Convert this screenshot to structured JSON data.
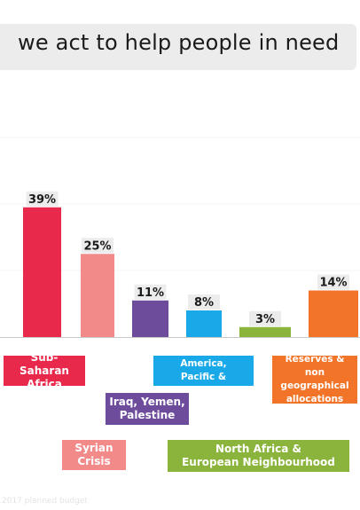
{
  "title": "we act to help people in need",
  "footnote": "2017 planned budget",
  "chart_data": {
    "type": "bar",
    "categories": [
      "Sub-Saharan Africa",
      "Syrian Crisis",
      "Iraq, Yemen, Palestine",
      "Asia, Latin America, Pacific & Caribbean",
      "North Africa & European Neighbourhood",
      "Reserves & non geographical allocations"
    ],
    "values": [
      39,
      25,
      11,
      8,
      3,
      14
    ],
    "value_labels": [
      "39%",
      "25%",
      "11%",
      "8%",
      "3%",
      "14%"
    ],
    "colors": [
      "#e8294c",
      "#f28a8a",
      "#6e4c9c",
      "#1aa9e8",
      "#8ab43c",
      "#f17428"
    ],
    "ylim": [
      0,
      60
    ],
    "grid": true,
    "category_labels": [
      {
        "lines": [
          "Sub-Saharan",
          "Africa"
        ]
      },
      {
        "lines": [
          "Syrian",
          "Crisis"
        ]
      },
      {
        "lines": [
          "Iraq, Yemen,",
          "Palestine"
        ]
      },
      {
        "lines": [
          "Asia, Latin America,",
          "Pacific & Caribbean"
        ]
      },
      {
        "lines": [
          "North Africa &",
          "European Neighbourhood"
        ]
      },
      {
        "lines": [
          "Reserves &",
          "non geographical",
          "allocations"
        ]
      }
    ]
  }
}
